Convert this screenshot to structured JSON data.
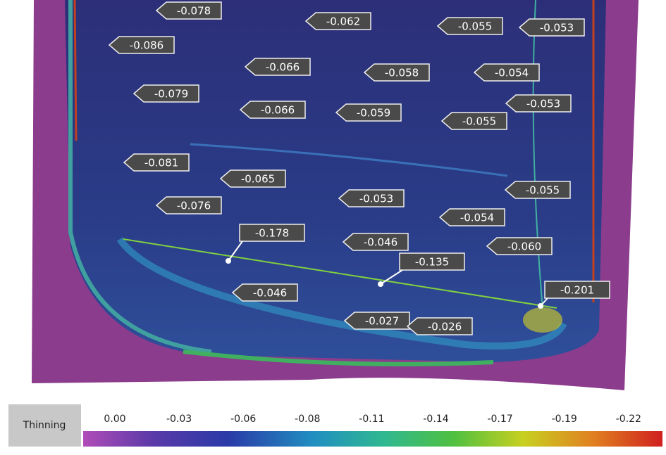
{
  "probes": [
    "-0.078",
    "-0.062",
    "-0.055",
    "-0.053",
    "-0.086",
    "-0.066",
    "-0.058",
    "-0.054",
    "-0.079",
    "-0.053",
    "-0.066",
    "-0.059",
    "-0.055",
    "-0.081",
    "-0.065",
    "-0.055",
    "-0.053",
    "-0.076",
    "-0.054",
    "-0.178",
    "-0.046",
    "-0.060",
    "-0.135",
    "-0.046",
    "-0.201",
    "-0.027",
    "-0.026"
  ],
  "legend": {
    "title": "Thinning",
    "ticks": [
      "0.00",
      "-0.03",
      "-0.06",
      "-0.08",
      "-0.11",
      "-0.14",
      "-0.17",
      "-0.19",
      "-0.22"
    ]
  }
}
